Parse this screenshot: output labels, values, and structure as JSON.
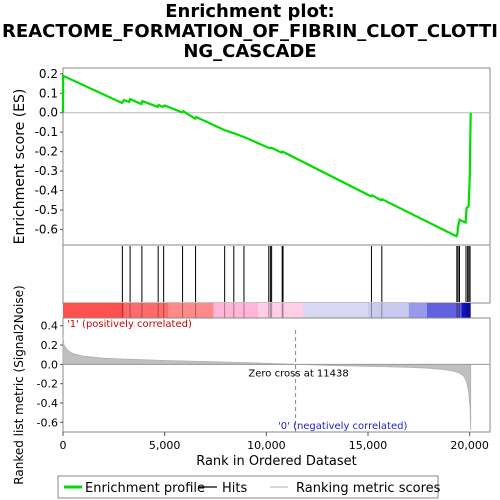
{
  "chart_data": {
    "type": "line",
    "title_lines": [
      "Enrichment plot:",
      "REACTOME_FORMATION_OF_FIBRIN_CLOT_CLOTTI",
      "NG_CASCADE"
    ],
    "es_panel": {
      "ylabel": "Enrichment score (ES)",
      "ylim": [
        -0.68,
        0.23
      ],
      "yticks": [
        "0.2",
        "0.1",
        "0.0",
        "-0.1",
        "-0.2",
        "-0.3",
        "-0.4",
        "-0.5",
        "-0.6"
      ],
      "ytick_values": [
        0.2,
        0.1,
        0.0,
        -0.1,
        -0.2,
        -0.3,
        -0.4,
        -0.5,
        -0.6
      ],
      "series_color": "#00dd00",
      "curve": [
        [
          0,
          0.0
        ],
        [
          5,
          0.19
        ],
        [
          2900,
          0.05
        ],
        [
          3000,
          0.065
        ],
        [
          3250,
          0.055
        ],
        [
          3300,
          0.07
        ],
        [
          3850,
          0.045
        ],
        [
          3900,
          0.06
        ],
        [
          4650,
          0.03
        ],
        [
          4700,
          0.04
        ],
        [
          4900,
          0.03
        ],
        [
          5000,
          0.037
        ],
        [
          5850,
          0.002
        ],
        [
          5900,
          0.008
        ],
        [
          6500,
          -0.03
        ],
        [
          6550,
          -0.022
        ],
        [
          7950,
          -0.09
        ],
        [
          8400,
          -0.105
        ],
        [
          8900,
          -0.125
        ],
        [
          10100,
          -0.18
        ],
        [
          10200,
          -0.182
        ],
        [
          10250,
          -0.18
        ],
        [
          10750,
          -0.205
        ],
        [
          10800,
          -0.2
        ],
        [
          15150,
          -0.43
        ],
        [
          15200,
          -0.425
        ],
        [
          15650,
          -0.45
        ],
        [
          15700,
          -0.445
        ],
        [
          19350,
          -0.635
        ],
        [
          19400,
          -0.62
        ],
        [
          19420,
          -0.59
        ],
        [
          19500,
          -0.55
        ],
        [
          19800,
          -0.565
        ],
        [
          19850,
          -0.49
        ],
        [
          19950,
          -0.48
        ],
        [
          20000,
          -0.34
        ],
        [
          20050,
          0.0
        ]
      ]
    },
    "hits": [
      2920,
      3300,
      3880,
      4680,
      4950,
      5880,
      6520,
      7950,
      8400,
      8900,
      10120,
      10200,
      10260,
      10780,
      10820,
      15170,
      15680,
      19370,
      19430,
      19500,
      19820,
      19900,
      19960,
      20020
    ],
    "ranked_panel": {
      "ylabel": "Ranked list metric (Signal2Noise)",
      "ylim": [
        -0.7,
        0.48
      ],
      "yticks": [
        "0.4",
        "0.2",
        "0.0",
        "-0.2",
        "-0.4",
        "-0.6"
      ],
      "ytick_values": [
        0.4,
        0.2,
        0.0,
        -0.2,
        -0.4,
        -0.6
      ],
      "zero_cross_label": "Zero cross at 11438",
      "zero_cross": 11438,
      "pos_label": "'1' (positively correlated)",
      "neg_label": "'0' (negatively correlated)",
      "metric": [
        [
          0,
          0.28
        ],
        [
          50,
          0.2
        ],
        [
          200,
          0.15
        ],
        [
          500,
          0.11
        ],
        [
          1000,
          0.085
        ],
        [
          2000,
          0.065
        ],
        [
          3000,
          0.055
        ],
        [
          5000,
          0.04
        ],
        [
          7000,
          0.03
        ],
        [
          9000,
          0.018
        ],
        [
          11000,
          0.004
        ],
        [
          11438,
          0.0
        ],
        [
          13000,
          -0.01
        ],
        [
          15000,
          -0.02
        ],
        [
          17000,
          -0.03
        ],
        [
          18000,
          -0.04
        ],
        [
          18800,
          -0.055
        ],
        [
          19200,
          -0.07
        ],
        [
          19500,
          -0.09
        ],
        [
          19700,
          -0.12
        ],
        [
          19850,
          -0.18
        ],
        [
          19950,
          -0.28
        ],
        [
          20020,
          -0.45
        ],
        [
          20050,
          -0.68
        ]
      ]
    },
    "xaxis": {
      "xlabel": "Rank in Ordered Dataset",
      "xlim": [
        0,
        21000
      ],
      "xticks": [
        "0",
        "5,000",
        "10,000",
        "15,000",
        "20,000"
      ],
      "xtick_values": [
        0,
        5000,
        10000,
        15000,
        20000
      ]
    },
    "colorbar_segments": [
      {
        "from": 0,
        "to": 3000,
        "color": "#ff5050"
      },
      {
        "from": 3000,
        "to": 5200,
        "color": "#ff6a6a"
      },
      {
        "from": 5200,
        "to": 7400,
        "color": "#ff8a8a"
      },
      {
        "from": 7400,
        "to": 9600,
        "color": "#ffb4d8"
      },
      {
        "from": 9600,
        "to": 11800,
        "color": "#ffcfe8"
      },
      {
        "from": 11800,
        "to": 15000,
        "color": "#d8d8f4"
      },
      {
        "from": 15000,
        "to": 17000,
        "color": "#cacaf0"
      },
      {
        "from": 17000,
        "to": 17900,
        "color": "#9898ec"
      },
      {
        "from": 17900,
        "to": 19600,
        "color": "#6060e0"
      },
      {
        "from": 19600,
        "to": 20050,
        "color": "#1010cc"
      }
    ],
    "legend": [
      {
        "label": "Enrichment profile",
        "color": "#00dd00",
        "style": "thick"
      },
      {
        "label": "Hits",
        "color": "#000000",
        "style": "thin"
      },
      {
        "label": "Ranking metric scores",
        "color": "#c0c0c0",
        "style": "thin"
      }
    ]
  }
}
